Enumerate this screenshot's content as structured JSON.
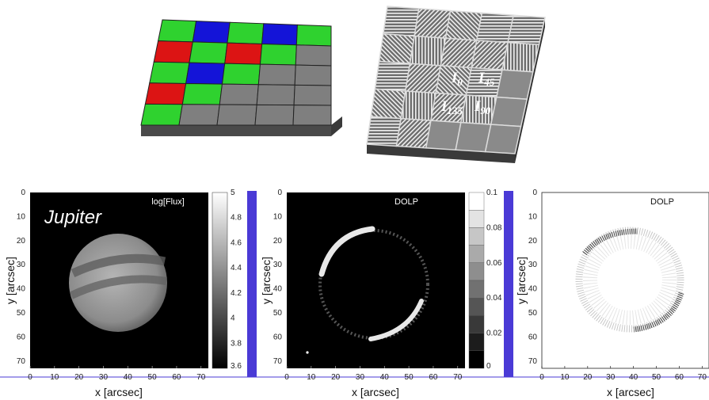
{
  "mosaic": {
    "colors": {
      "green": "#2fd22f",
      "blue": "#1414d8",
      "red": "#dc1414",
      "gray": "#7f7f7f"
    },
    "rows": [
      [
        "green",
        "blue",
        "green",
        "blue",
        "green"
      ],
      [
        "red",
        "green",
        "red",
        "green",
        "gray"
      ],
      [
        "green",
        "blue",
        "green",
        "gray",
        "gray"
      ],
      [
        "red",
        "green",
        "gray",
        "gray",
        "gray"
      ],
      [
        "green",
        "gray",
        "gray",
        "gray",
        "gray"
      ]
    ]
  },
  "polarizer": {
    "label_0": "0",
    "label_45": "45",
    "label_90": "90",
    "label_135": "135",
    "symbol": "I"
  },
  "panels": [
    {
      "title": "log[Flux]",
      "overlay": "Jupiter",
      "ylabel": "y [arcsec]",
      "xlabel": "x [arcsec]",
      "colorbar": {
        "ticks": [
          "5",
          "4.8",
          "4.6",
          "4.4",
          "4.2",
          "4",
          "3.8",
          "3.6"
        ]
      }
    },
    {
      "title": "DOLP",
      "ylabel": "y [arcsec]",
      "xlabel": "x [arcsec]",
      "colorbar": {
        "ticks": [
          "0.1",
          "0.08",
          "0.06",
          "0.04",
          "0.02",
          "0"
        ]
      }
    },
    {
      "title": "DOLP",
      "ylabel": "y [arcsec]",
      "xlabel": "x [arcsec]"
    }
  ],
  "axis_ticks": {
    "x": [
      "0",
      "10",
      "20",
      "30",
      "40",
      "50",
      "60",
      "70"
    ],
    "y": [
      "0",
      "10",
      "20",
      "30",
      "40",
      "50",
      "60",
      "70"
    ]
  }
}
